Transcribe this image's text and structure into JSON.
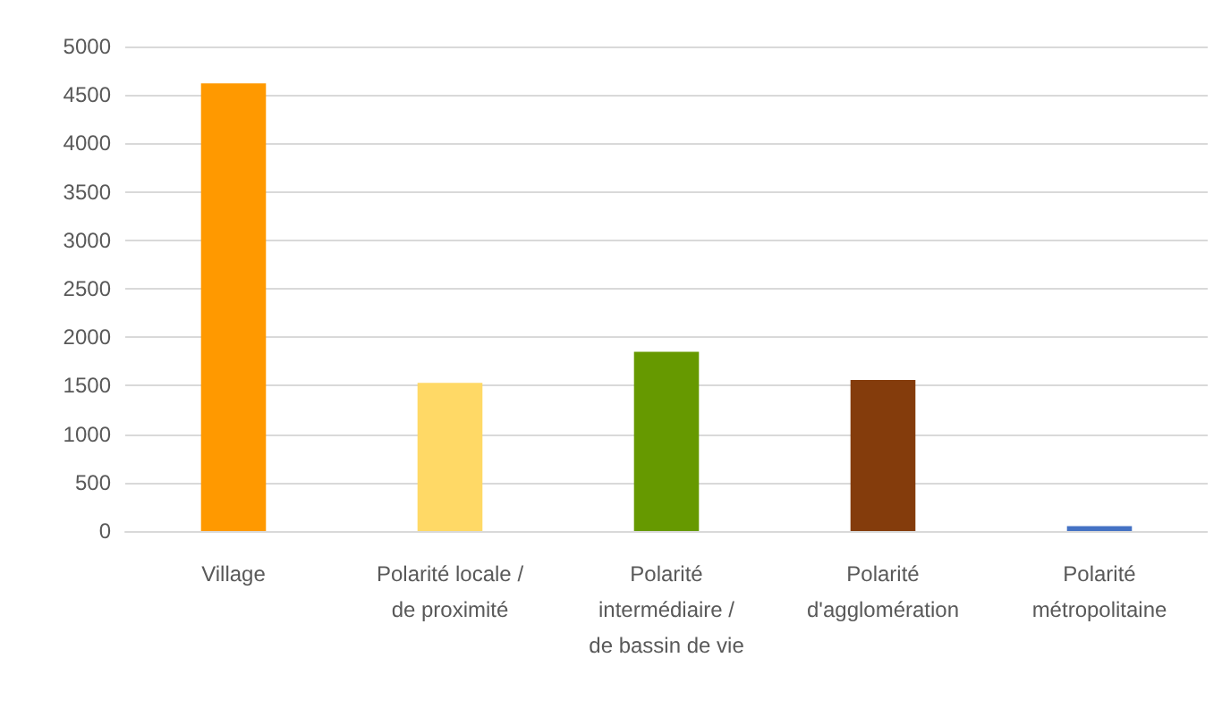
{
  "chart_data": {
    "type": "bar",
    "categories": [
      "Village",
      "Polarité locale /\nde proximité",
      "Polarité\nintermédiaire /\nde bassin de vie",
      "Polarité\nd'agglomération",
      "Polarité\nmétropolitaine"
    ],
    "values": [
      4620,
      1530,
      1850,
      1560,
      50
    ],
    "colors": [
      "#ff9900",
      "#ffd966",
      "#669900",
      "#843c0c",
      "#4472c4"
    ],
    "ylim": [
      0,
      5000
    ],
    "yticks": [
      0,
      500,
      1000,
      1500,
      2000,
      2500,
      3000,
      3500,
      4000,
      4500,
      5000
    ],
    "grid": "y"
  }
}
